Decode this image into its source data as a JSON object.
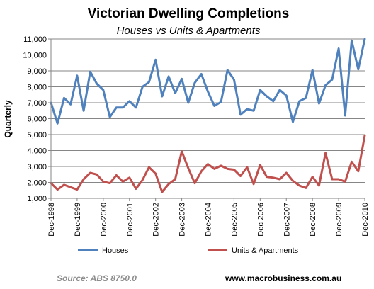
{
  "chart_data": {
    "type": "line",
    "title": "Victorian Dwelling Completions",
    "subtitle": "Houses vs Units & Apartments",
    "ylabel": "Quarterly",
    "xlabel": "",
    "ylim": [
      1000,
      11000
    ],
    "yticks": [
      1000,
      2000,
      3000,
      4000,
      5000,
      6000,
      7000,
      8000,
      9000,
      10000,
      11000
    ],
    "ytick_labels": [
      "1,000",
      "2,000",
      "3,000",
      "4,000",
      "5,000",
      "6,000",
      "7,000",
      "8,000",
      "9,000",
      "10,000",
      "11,000"
    ],
    "xtick_labels": [
      "Dec-1998",
      "Dec-1999",
      "Dec-2000",
      "Dec-2001",
      "Dec-2002",
      "Dec-2003",
      "Dec-2004",
      "Dec-2005",
      "Dec-2006",
      "Dec-2007",
      "Dec-2008",
      "Dec-2009",
      "Dec-2010"
    ],
    "grid": true,
    "legend_position": "bottom",
    "series": [
      {
        "name": "Houses",
        "color": "#4f81bd",
        "values": [
          7000,
          5700,
          7300,
          6900,
          8700,
          6500,
          8950,
          8200,
          7800,
          6100,
          6700,
          6700,
          7100,
          6700,
          8000,
          8300,
          9700,
          7400,
          8650,
          7600,
          8500,
          7000,
          8250,
          8800,
          7700,
          6800,
          7050,
          9050,
          8450,
          6250,
          6600,
          6500,
          7800,
          7400,
          7100,
          7800,
          7450,
          5800,
          7100,
          7300,
          9050,
          6950,
          8100,
          8450,
          10400,
          6200,
          10900,
          9100,
          11000
        ]
      },
      {
        "name": "Units & Apartments",
        "color": "#c0504d",
        "values": [
          1950,
          1550,
          1850,
          1700,
          1550,
          2200,
          2600,
          2500,
          2050,
          1950,
          2450,
          2050,
          2300,
          1600,
          2150,
          2950,
          2550,
          1400,
          1900,
          2200,
          3950,
          2900,
          1950,
          2700,
          3150,
          2850,
          3050,
          2850,
          2800,
          2400,
          2950,
          1900,
          3100,
          2350,
          2300,
          2200,
          2600,
          2100,
          1800,
          1650,
          2350,
          1800,
          3850,
          2200,
          2200,
          2050,
          3300,
          2700,
          4950
        ]
      }
    ],
    "source": "Source: ABS 8750.0",
    "website": "www.macrobusiness.com.au"
  }
}
